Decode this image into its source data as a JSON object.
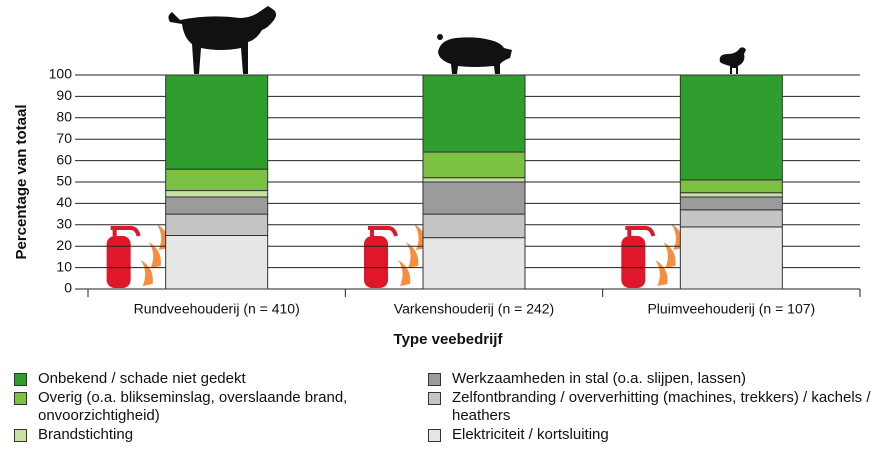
{
  "chart_data": {
    "type": "stacked-bar",
    "categories": [
      "Rundveehouderij (n = 410)",
      "Varkenshouderij (n = 242)",
      "Pluimveehouderij (n = 107)"
    ],
    "series": [
      {
        "name": "Elektriciteit / kortsluiting",
        "color": "#e6e6e6",
        "values": [
          25,
          24,
          29
        ]
      },
      {
        "name": "Zelfontbranding / oververhitting (machines, trekkers) / kachels / heathers",
        "color": "#c4c4c4",
        "values": [
          10,
          11,
          8
        ]
      },
      {
        "name": "Werkzaamheden in stal (o.a. slijpen, lassen)",
        "color": "#9b9b9b",
        "values": [
          8,
          15,
          6
        ]
      },
      {
        "name": "Brandstichting",
        "color": "#c8e2a2",
        "values": [
          3,
          2,
          2
        ]
      },
      {
        "name": "Overig (o.a. blikseminslag, overslaande brand, onvoorzichtigheid)",
        "color": "#7cc142",
        "values": [
          10,
          12,
          6
        ]
      },
      {
        "name": "Onbekend / schade niet gedekt",
        "color": "#2f9e2f",
        "values": [
          44,
          36,
          49
        ]
      }
    ],
    "xlabel": "Type veebedrijf",
    "ylabel": "Percentage van totaal",
    "ylim": [
      0,
      100
    ],
    "yticks": [
      0,
      10,
      20,
      30,
      40,
      50,
      60,
      70,
      80,
      90,
      100
    ],
    "grid": true
  }
}
